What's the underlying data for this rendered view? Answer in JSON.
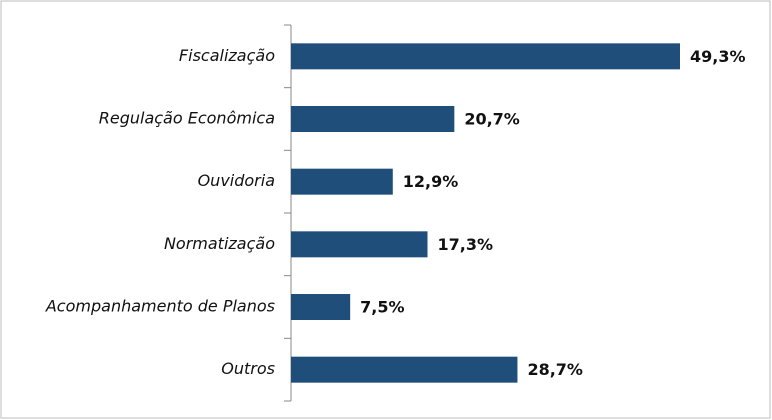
{
  "chart_data": {
    "type": "barh",
    "categories": [
      "Fiscalização",
      "Regulação Econômica",
      "Ouvidoria",
      "Normatização",
      "Acompanhamento de Planos",
      "Outros"
    ],
    "values": [
      49.3,
      20.7,
      12.9,
      17.3,
      7.5,
      28.7
    ],
    "value_labels": [
      "49,3%",
      "20,7%",
      "12,9%",
      "17,3%",
      "7,5%",
      "28,7%"
    ],
    "color": "#1f4e7b"
  }
}
